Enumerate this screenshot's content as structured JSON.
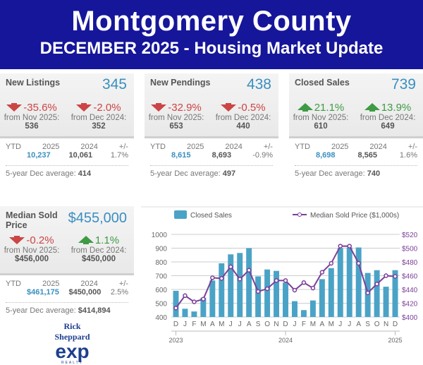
{
  "header": {
    "title": "Montgomery County",
    "subtitle": "DECEMBER 2025 - Housing Market Update"
  },
  "colors": {
    "header_bg": "#16169a",
    "accent_blue": "#3a8fc0",
    "down_red": "#cc4444",
    "up_green": "#3f9a44",
    "bar": "#4aa3c6",
    "line": "#7b3f98"
  },
  "cards": [
    {
      "title": "New Listings",
      "value": "345",
      "c1": {
        "dir": "down",
        "pct": "-35.6%",
        "label": "from Nov 2025:",
        "base": "536"
      },
      "c2": {
        "dir": "down",
        "pct": "-2.0%",
        "label": "from Dec 2024:",
        "base": "352"
      },
      "ytd": {
        "label": "YTD",
        "y1": "2025",
        "y2": "2024",
        "chg_label": "+/-",
        "v1": "10,237",
        "v2": "10,061",
        "chg": "1.7%"
      },
      "avg_label": "5-year Dec average:",
      "avg": "414"
    },
    {
      "title": "New Pendings",
      "value": "438",
      "c1": {
        "dir": "down",
        "pct": "-32.9%",
        "label": "from Nov 2025:",
        "base": "653"
      },
      "c2": {
        "dir": "down",
        "pct": "-0.5%",
        "label": "from Dec 2024:",
        "base": "440"
      },
      "ytd": {
        "label": "YTD",
        "y1": "2025",
        "y2": "2024",
        "chg_label": "+/-",
        "v1": "8,615",
        "v2": "8,693",
        "chg": "-0.9%"
      },
      "avg_label": "5-year Dec average:",
      "avg": "497"
    },
    {
      "title": "Closed Sales",
      "value": "739",
      "c1": {
        "dir": "up",
        "pct": "21.1%",
        "label": "from Nov 2025:",
        "base": "610"
      },
      "c2": {
        "dir": "up",
        "pct": "13.9%",
        "label": "from Dec 2024:",
        "base": "649"
      },
      "ytd": {
        "label": "YTD",
        "y1": "2025",
        "y2": "2024",
        "chg_label": "+/-",
        "v1": "8,698",
        "v2": "8,565",
        "chg": "1.6%"
      },
      "avg_label": "5-year Dec average:",
      "avg": "740"
    },
    {
      "title": "Median Sold Price",
      "value": "$455,000",
      "c1": {
        "dir": "down",
        "pct": "-0.2%",
        "label": "from Nov 2025:",
        "base": "$456,000"
      },
      "c2": {
        "dir": "up",
        "pct": "1.1%",
        "label": "from Dec 2024:",
        "base": "$450,000"
      },
      "ytd": {
        "label": "YTD",
        "y1": "2025",
        "y2": "2024",
        "chg_label": "+/-",
        "v1": "$461,175",
        "v2": "$450,000",
        "chg": "2.5%"
      },
      "avg_label": "5-year Dec average:",
      "avg": "$414,894"
    }
  ],
  "logo": {
    "name": "Rick Sheppard",
    "brand": "exp",
    "sub": "REALTY"
  },
  "chart_data": {
    "type": "bar",
    "categories": [
      "D",
      "J",
      "F",
      "M",
      "A",
      "M",
      "J",
      "J",
      "A",
      "S",
      "O",
      "N",
      "D",
      "J",
      "F",
      "M",
      "A",
      "M",
      "J",
      "J",
      "A",
      "S",
      "O",
      "N",
      "D"
    ],
    "year_labels": [
      "2023",
      "2024",
      "2025"
    ],
    "series": [
      {
        "name": "Closed Sales",
        "type": "bar",
        "axis": "left",
        "values": [
          590,
          460,
          440,
          540,
          665,
          790,
          855,
          865,
          900,
          695,
          745,
          735,
          650,
          515,
          450,
          520,
          675,
          755,
          900,
          905,
          905,
          720,
          740,
          620,
          740
        ]
      },
      {
        "name": "Median Sold Price ($1,000s)",
        "type": "line",
        "axis": "right",
        "values": [
          413,
          431,
          422,
          426,
          457,
          456,
          473,
          455,
          468,
          437,
          441,
          453,
          453,
          439,
          450,
          442,
          465,
          478,
          503,
          503,
          478,
          435,
          448,
          460,
          459
        ]
      }
    ],
    "ylim": [
      400,
      1000
    ],
    "yticks": [
      "400",
      "500",
      "600",
      "700",
      "800",
      "900",
      "1000"
    ],
    "y2lim": [
      400,
      520
    ],
    "y2ticks": [
      "$400",
      "$420",
      "$440",
      "$460",
      "$480",
      "$500",
      "$520"
    ],
    "grid": true,
    "legend": "top"
  }
}
